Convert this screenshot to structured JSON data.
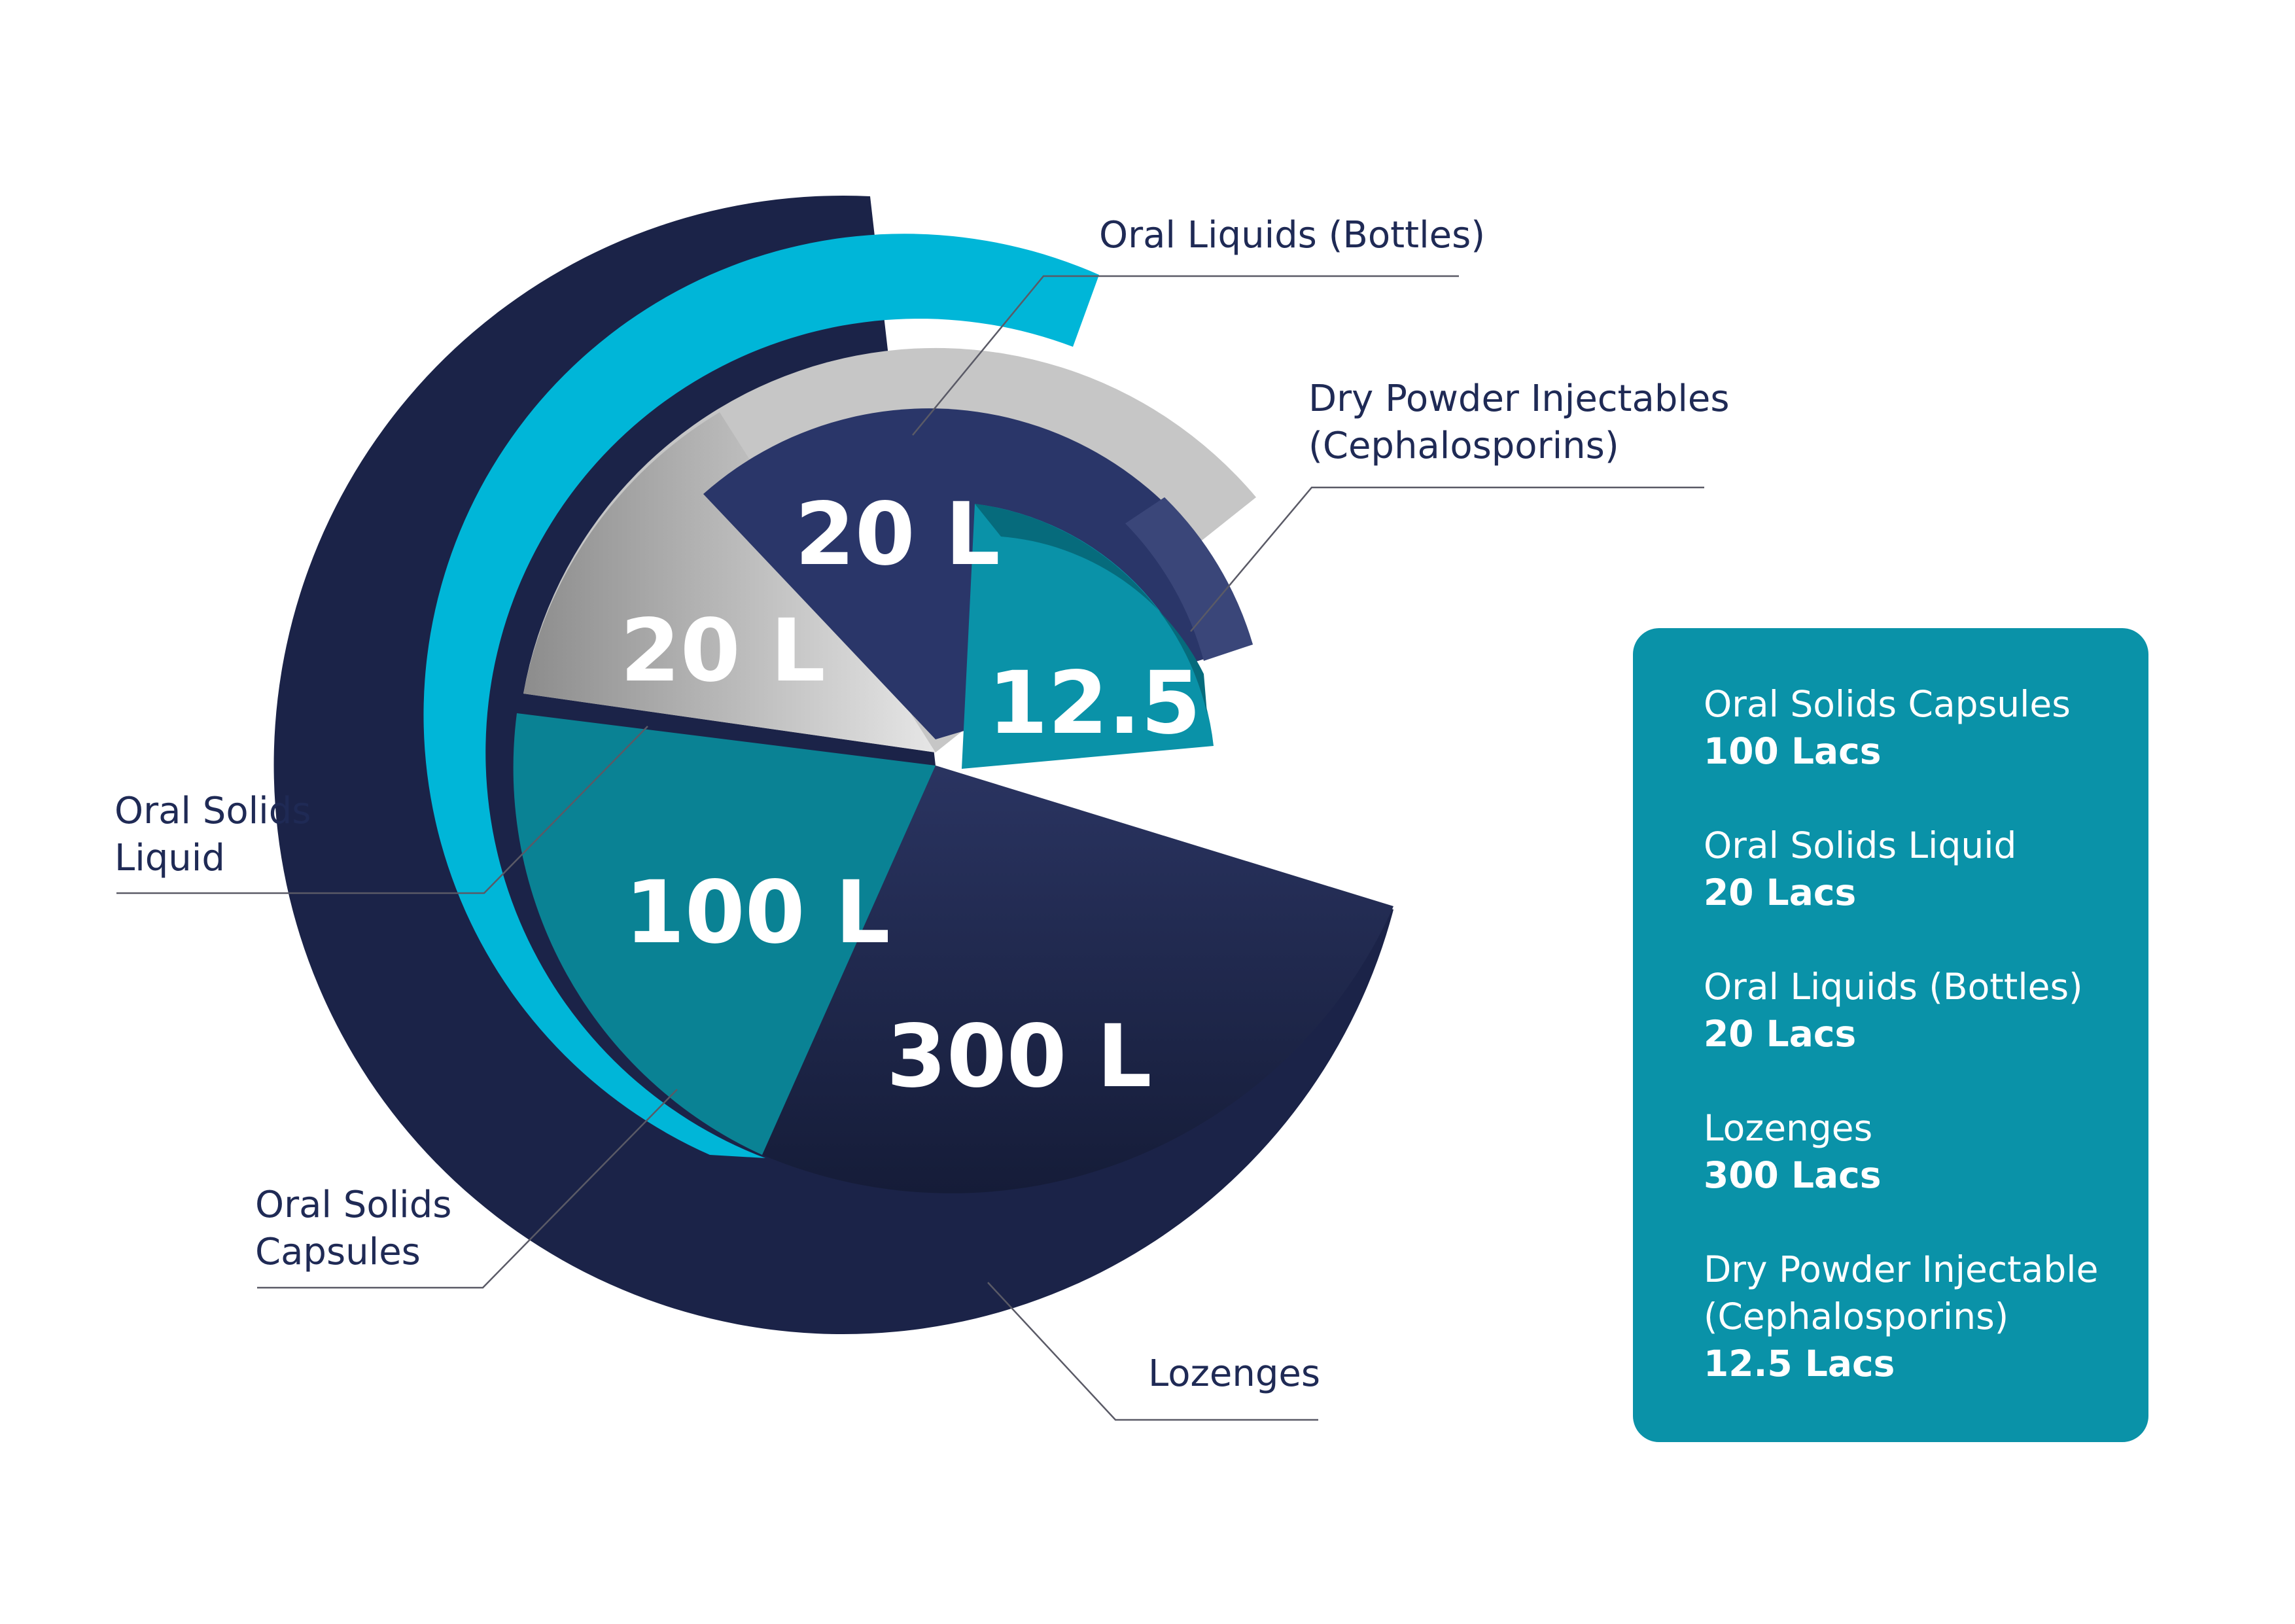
{
  "chart_data": {
    "type": "pie",
    "slices": [
      {
        "category": "Oral Solids Capsules",
        "value": 100,
        "display": "100 L",
        "color": "#0a8294",
        "rim_color": "#00c2e3"
      },
      {
        "category": "Oral Solids Liquid",
        "value": 20,
        "display": "20 L",
        "color": "#bdbdbd",
        "rim_color": "#d8d8d8"
      },
      {
        "category": "Oral Liquids (Bottles)",
        "value": 20,
        "display": "20 L",
        "color": "#2a3669",
        "rim_color": "#3a4679"
      },
      {
        "category": "Dry Powder Injectables (Cephalosporins)",
        "value": 12.5,
        "display": "12.5 L",
        "color": "#0a92a8",
        "rim_color": "#066b7c"
      },
      {
        "category": "Lozenges",
        "value": 300,
        "display": "300 L",
        "color": "#1e2748",
        "rim_color": "#141b38"
      }
    ],
    "callouts": {
      "bottles": "Oral Liquids (Bottles)",
      "dry_powder_line1": "Dry Powder Injectables",
      "dry_powder_line2": "(Cephalosporins)",
      "liquid_line1": "Oral Solids",
      "liquid_line2": "Liquid",
      "capsules_line1": "Oral Solids",
      "capsules_line2": "Capsules",
      "lozenges": "Lozenges"
    }
  },
  "legend": {
    "items": [
      {
        "name": "Oral Solids Capsules",
        "value": "100 Lacs"
      },
      {
        "name": "Oral Solids Liquid",
        "value": "20 Lacs"
      },
      {
        "name": "Oral Liquids (Bottles)",
        "value": "20 Lacs"
      },
      {
        "name": "Lozenges",
        "value": "300 Lacs"
      },
      {
        "name": "Dry Powder Injectable",
        "name2": "(Cephalosporins)",
        "value": "12.5 Lacs"
      }
    ]
  },
  "colors": {
    "navy": "#1e2748",
    "teal": "#0a92a8",
    "cyan": "#00c2e3",
    "grey": "#bdbdbd",
    "text": "#1f2a55"
  }
}
